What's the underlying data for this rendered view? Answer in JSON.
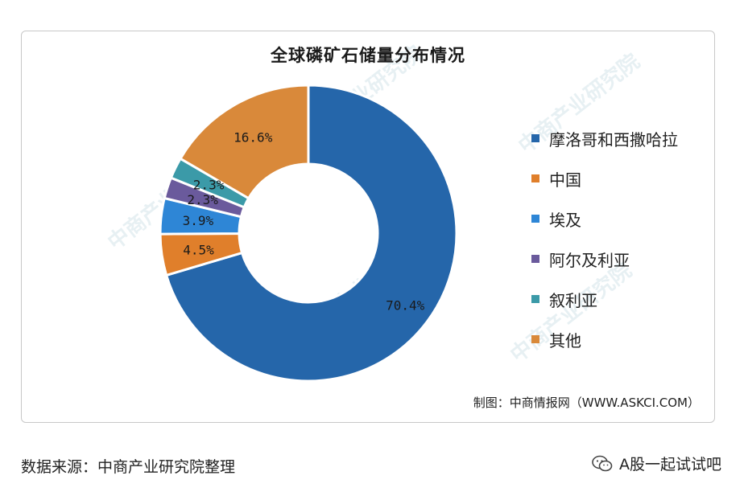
{
  "colors": {
    "morocco": "#2566aa",
    "china": "#e07f2b",
    "egypt": "#2e86d6",
    "algeria": "#6a5a9c",
    "syria": "#3b9aa8",
    "other": "#d9893a"
  },
  "chart_data": {
    "type": "pie",
    "title": "全球磷矿石储量分布情况",
    "donut": true,
    "categories": [
      "摩洛哥和西撒哈拉",
      "中国",
      "埃及",
      "阿尔及利亚",
      "叙利亚",
      "其他"
    ],
    "values": [
      70.4,
      4.5,
      3.9,
      2.3,
      2.3,
      16.6
    ],
    "labels": [
      "70.4%",
      "4.5%",
      "3.9%",
      "2.3%",
      "2.3%",
      "16.6%"
    ],
    "legend_position": "right"
  },
  "credit": "制图：中商情报网（WWW.ASKCI.COM）",
  "source": "数据来源：中商产业研究院整理",
  "wechat": "A股一起试试吧",
  "watermark_text": "中商产业研究院"
}
